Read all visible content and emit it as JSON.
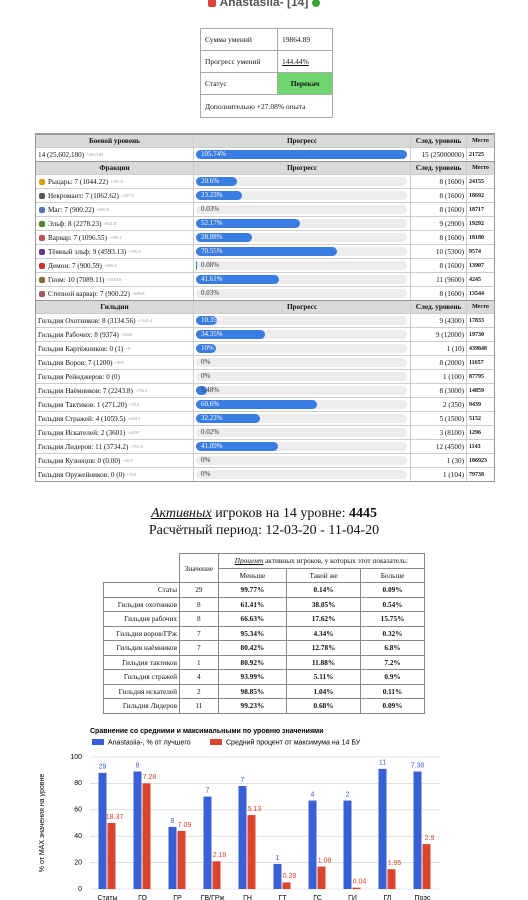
{
  "header": {
    "name": "Anastasiia- [14]"
  },
  "summary": {
    "rows": [
      {
        "label": "Сумма умений",
        "value": "19864.89"
      },
      {
        "label": "Прогресс умений",
        "value": "144.44%"
      },
      {
        "label": "Статус",
        "value": "Перекач"
      }
    ],
    "note": "Дополнительно +27.08% опыта"
  },
  "levels": {
    "sections": [
      {
        "header": [
          "Боевой уровень",
          "Прогресс",
          "След. уровень",
          "Место"
        ],
        "rows": [
          {
            "name": "14 (25,602,180)",
            "delta": "+402,180",
            "progress": {
              "value": 105.74,
              "label": "105.74%"
            },
            "next": "15 (25000000)",
            "place": "21725"
          }
        ]
      },
      {
        "header": [
          "Фракции",
          "Прогресс",
          "След. уровень",
          "Место"
        ],
        "rows": [
          {
            "name": "Рыцарь: 7 (1044.22)",
            "delta": "+335.8",
            "progress": {
              "value": 20.6,
              "label": "20.6%"
            },
            "next": "8 (1600)",
            "place": "24155"
          },
          {
            "name": "Некромант: 7 (1062.62)",
            "delta": "+337.8",
            "progress": {
              "value": 23.23,
              "label": "23.23%"
            },
            "next": "8 (1600)",
            "place": "18692"
          },
          {
            "name": "Маг: 7 (900.22)",
            "delta": "+699.8",
            "progress": {
              "value": 0.03,
              "label": "0.03%"
            },
            "next": "8 (1600)",
            "place": "18717"
          },
          {
            "name": "Эльф: 8 (2278.23)",
            "delta": "+621.8",
            "progress": {
              "value": 52.17,
              "label": "52.17%"
            },
            "next": "9 (2900)",
            "place": "19292"
          },
          {
            "name": "Варвар: 7 (1096.55)",
            "delta": "+503.4",
            "progress": {
              "value": 28.08,
              "label": "28.08%"
            },
            "next": "8 (1600)",
            "place": "18180"
          },
          {
            "name": "Тёмный эльф: 9 (4593.13)",
            "delta": "+706.9",
            "progress": {
              "value": 70.55,
              "label": "70.55%"
            },
            "next": "10 (5300)",
            "place": "9574"
          },
          {
            "name": "Демон: 7 (900.59)",
            "delta": "+699.4",
            "progress": {
              "value": 0.08,
              "label": "0.08%"
            },
            "next": "8 (1600)",
            "place": "13907"
          },
          {
            "name": "Гном: 10 (7089.11)",
            "delta": "+2510.9",
            "progress": {
              "value": 41.61,
              "label": "41.61%"
            },
            "next": "11 (9600)",
            "place": "4245"
          },
          {
            "name": "Степной варвар: 7 (900.22)",
            "delta": "+699.8",
            "progress": {
              "value": 0.03,
              "label": "0.03%"
            },
            "next": "8 (1600)",
            "place": "13544"
          }
        ]
      },
      {
        "header": [
          "Гильдии",
          "Прогресс",
          "След. уровень",
          "Место"
        ],
        "rows": [
          {
            "name": "Гильдия Охотников: 8 (3134.56)",
            "delta": "+1165.4",
            "progress": {
              "value": 10.35,
              "label": "10.35%"
            },
            "next": "9 (4300)",
            "place": "17833"
          },
          {
            "name": "Гильдия Рабочих: 8 (9374)",
            "delta": "+2626",
            "progress": {
              "value": 34.35,
              "label": "34.35%"
            },
            "next": "9 (12000)",
            "place": "19730"
          },
          {
            "name": "Гильдия Картёжников: 0 (1)",
            "delta": "+9",
            "progress": {
              "value": 10,
              "label": "10%"
            },
            "next": "1 (10)",
            "place": "439848"
          },
          {
            "name": "Гильдия Воров: 7 (1200)",
            "delta": "+800",
            "progress": {
              "value": 0,
              "label": "0%"
            },
            "next": "8 (2000)",
            "place": "11657"
          },
          {
            "name": "Гильдия Рейнджеров: 0 (0)",
            "progress": {
              "value": 0,
              "label": "0%"
            },
            "next": "1 (100)",
            "place": "87795"
          },
          {
            "name": "Гильдия Наёмников: 7 (2243.8)",
            "delta": "+756.2",
            "progress": {
              "value": 5.48,
              "label": "5.48%"
            },
            "next": "8 (3000)",
            "place": "14859"
          },
          {
            "name": "Гильдия Тактиков: 1 (271.20)",
            "delta": "+78.8",
            "progress": {
              "value": 60.6,
              "label": "60.6%"
            },
            "next": "2 (350)",
            "place": "9439"
          },
          {
            "name": "Гильдия Стражей: 4 (1059.5)",
            "delta": "+440.5",
            "progress": {
              "value": 32.23,
              "label": "32.23%"
            },
            "next": "5 (1500)",
            "place": "5152"
          },
          {
            "name": "Гильдия Искателей: 2 (3601)",
            "delta": "+4499",
            "progress": {
              "value": 0.02,
              "label": "0.02%"
            },
            "next": "3 (8100)",
            "place": "1296"
          },
          {
            "name": "Гильдия Лидеров: 11 (3734.2)",
            "delta": "+765.8",
            "progress": {
              "value": 41.09,
              "label": "41.09%"
            },
            "next": "12 (4500)",
            "place": "1143"
          },
          {
            "name": "Гильдия Кузнецов: 0 (0.00)",
            "delta": "+30.0",
            "progress": {
              "value": 0,
              "label": "0%"
            },
            "next": "1 (30)",
            "place": "106923"
          },
          {
            "name": "Гильдия Оружейников: 0 (0)",
            "delta": "+104",
            "progress": {
              "value": 0,
              "label": "0%"
            },
            "next": "1 (104)",
            "place": "79738"
          }
        ]
      }
    ]
  },
  "active": {
    "emph": "Активных",
    "text": "игроков на 14 уровне:",
    "count": "4445",
    "period": "Расчётный период: 12-03-20 - 11-04-20"
  },
  "compare": {
    "value_header": "Значение",
    "percent_emph": "Процент",
    "percent_header": "активных игроков, у которых этот показатель:",
    "subheaders": [
      "Меньше",
      "Такой же",
      "Больше"
    ],
    "rows": [
      [
        "Статы",
        "29",
        "99.77%",
        "0.14%",
        "0.09%"
      ],
      [
        "Гильдия охотников",
        "8",
        "61.41%",
        "38.05%",
        "0.54%"
      ],
      [
        "Гильдия рабочих",
        "8",
        "66.63%",
        "17.62%",
        "15.75%"
      ],
      [
        "Гильдия воров/ГРж",
        "7",
        "95.34%",
        "4.34%",
        "0.32%"
      ],
      [
        "Гильдия наёмников",
        "7",
        "80.42%",
        "12.78%",
        "6.8%"
      ],
      [
        "Гильдия тактиков",
        "1",
        "80.92%",
        "11.88%",
        "7.2%"
      ],
      [
        "Гильдия стражей",
        "4",
        "93.99%",
        "5.11%",
        "0.9%"
      ],
      [
        "Гильдия искателей",
        "2",
        "98.85%",
        "1.04%",
        "0.11%"
      ],
      [
        "Гильдия Лидеров",
        "11",
        "99.23%",
        "0.68%",
        "0.09%"
      ]
    ]
  },
  "chart_data": {
    "type": "bar",
    "title": "Сравнение со средними и максимальными по уровню значениями",
    "ylabel": "% от MAX значения на уровне",
    "categories": [
      "Статы",
      "ГО",
      "ГР",
      "ГВ/ГРж",
      "ГН",
      "ГТ",
      "ГС",
      "ГИ",
      "ГЛ",
      "Поэс"
    ],
    "series": [
      {
        "name": "Anastasiia-, % от лучшего",
        "color": "#3b5fd6",
        "values": [
          88,
          89,
          47,
          70,
          78,
          19,
          67,
          67,
          91,
          89
        ],
        "point_labels": [
          29,
          8,
          8,
          7,
          7,
          1,
          4,
          2,
          11,
          7.38
        ]
      },
      {
        "name": "Средний процент от максимума на 14 БУ",
        "color": "#d9452f",
        "values": [
          50,
          80,
          44,
          21,
          56,
          5,
          17,
          1,
          15,
          34
        ],
        "point_labels": [
          18.37,
          7.28,
          7.09,
          2.18,
          5.13,
          0.28,
          1.08,
          0.04,
          1.95,
          2.9
        ]
      }
    ],
    "ylim": [
      0,
      100
    ],
    "yticks": [
      0,
      20,
      40,
      60,
      80,
      100
    ],
    "grid": true
  }
}
